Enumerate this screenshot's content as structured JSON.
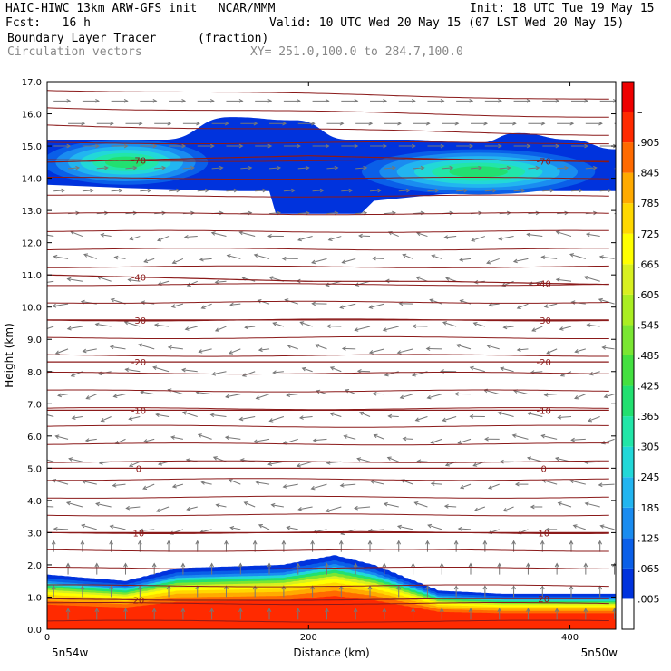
{
  "header": {
    "line1_left": "HAIC-HIWC 13km ARW-GFS init   NCAR/MMM",
    "line1_right": "Init: 18 UTC Tue 19 May 15",
    "line2_left": "Fcst:   16 h",
    "line2_right": "Valid: 10 UTC Wed 20 May 15 (07 LST Wed 20 May 15)",
    "line3_left": "Boundary Layer Tracer",
    "line3_unit": "(fraction)",
    "line4_left": "Circulation vectors",
    "line4_xy": "XY= 251.0,100.0 to 284.7,100.0"
  },
  "chart_data": {
    "type": "heatmap",
    "title": "Boundary Layer Tracer",
    "unit": "(fraction)",
    "xlabel": "Distance (km)",
    "ylabel": "Height (km)",
    "xlim": [
      0,
      435
    ],
    "ylim": [
      0,
      17
    ],
    "x_ticks": [
      0,
      200,
      400
    ],
    "y_ticks": [
      "0.0",
      "1.0",
      "2.0",
      "3.0",
      "4.0",
      "5.0",
      "6.0",
      "7.0",
      "8.0",
      "9.0",
      "10.0",
      "11.0",
      "12.0",
      "13.0",
      "14.0",
      "15.0",
      "16.0",
      "17.0"
    ],
    "x_endpoint_left": "5n54w",
    "x_endpoint_right": "5n50w",
    "colorbar": {
      "labels": [
        ".005",
        ".065",
        ".125",
        ".185",
        ".245",
        ".305",
        ".365",
        ".425",
        ".485",
        ".545",
        ".605",
        ".665",
        ".725",
        ".785",
        ".845",
        ".905",
        "–"
      ],
      "colors": [
        "#ffffff",
        "#0033dd",
        "#0a5fe8",
        "#1a8cf0",
        "#22b5f0",
        "#22d8d8",
        "#22e6a8",
        "#22e070",
        "#44e040",
        "#7ae632",
        "#aaee22",
        "#d8f020",
        "#ffff00",
        "#ffd800",
        "#ffaa00",
        "#ff6a00",
        "#ff2a00",
        "#ee0000"
      ]
    },
    "temperature_contours": [
      {
        "value": "-70",
        "y_at": [
          14.5,
          14.6,
          14.7,
          14.6,
          14.5
        ]
      },
      {
        "value": "-40",
        "y_at": [
          11.0,
          10.9,
          10.8,
          10.8,
          10.7
        ]
      },
      {
        "value": "-30",
        "y_at": [
          9.6,
          9.6,
          9.6,
          9.6,
          9.6
        ]
      },
      {
        "value": "-20",
        "y_at": [
          8.3,
          8.3,
          8.3,
          8.3,
          8.3
        ]
      },
      {
        "value": "-10",
        "y_at": [
          6.8,
          6.8,
          6.8,
          6.8,
          6.8
        ]
      },
      {
        "value": "0",
        "y_at": [
          5.0,
          5.0,
          5.0,
          5.0,
          5.0
        ]
      },
      {
        "value": "10",
        "y_at": [
          3.0,
          3.0,
          3.0,
          3.0,
          3.0
        ]
      },
      {
        "value": "20",
        "y_at": [
          0.95,
          0.9,
          0.9,
          0.95,
          0.95
        ]
      }
    ],
    "upper_plume": {
      "top": [
        [
          0,
          15.2
        ],
        [
          90,
          15.2
        ],
        [
          140,
          15.9
        ],
        [
          190,
          15.8
        ],
        [
          230,
          15.2
        ],
        [
          270,
          15.2
        ],
        [
          330,
          15.1
        ],
        [
          360,
          15.4
        ],
        [
          400,
          15.2
        ],
        [
          435,
          14.9
        ]
      ],
      "bottom": [
        [
          0,
          13.8
        ],
        [
          60,
          13.7
        ],
        [
          140,
          13.6
        ],
        [
          170,
          13.6
        ],
        [
          175,
          12.9
        ],
        [
          240,
          12.9
        ],
        [
          250,
          13.3
        ],
        [
          300,
          13.5
        ],
        [
          360,
          13.6
        ],
        [
          435,
          13.6
        ]
      ]
    },
    "lower_plume_top": [
      [
        0,
        1.7
      ],
      [
        30,
        1.6
      ],
      [
        60,
        1.5
      ],
      [
        100,
        1.9
      ],
      [
        180,
        2.0
      ],
      [
        220,
        2.3
      ],
      [
        250,
        2.0
      ],
      [
        300,
        1.2
      ],
      [
        350,
        1.1
      ],
      [
        435,
        1.1
      ]
    ]
  }
}
